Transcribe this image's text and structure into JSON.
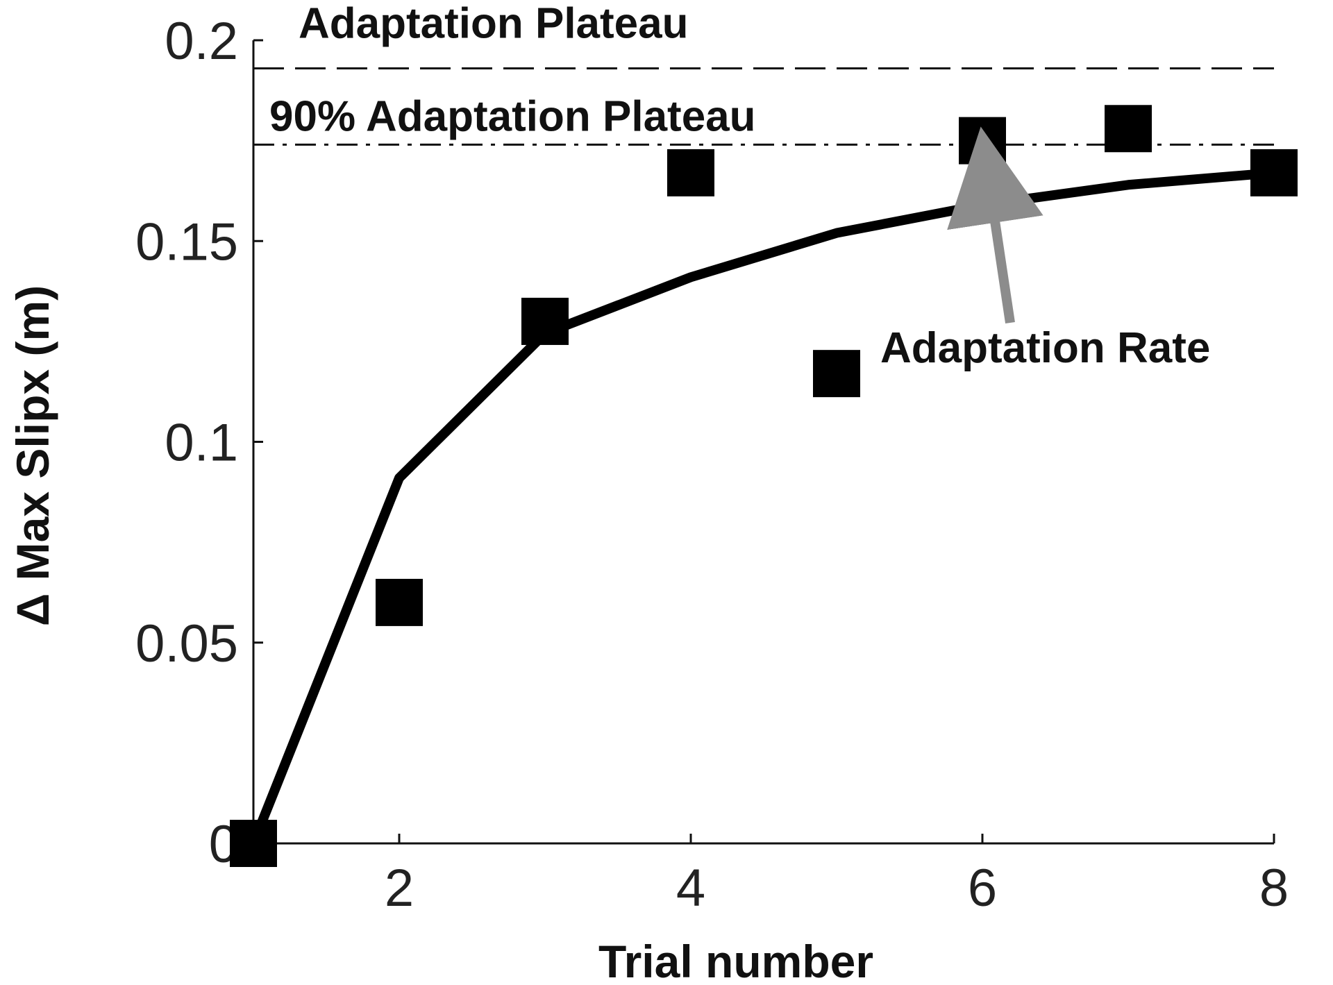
{
  "chart_data": {
    "type": "scatter",
    "title": "",
    "xlabel": "Trial number",
    "ylabel": "Δ Max Slipx (m)",
    "xlim": [
      1,
      8
    ],
    "ylim": [
      0,
      0.2
    ],
    "xticks": [
      2,
      4,
      6,
      8
    ],
    "xtick_labels": [
      "2",
      "4",
      "6",
      "8"
    ],
    "yticks": [
      0,
      0.05,
      0.1,
      0.15,
      0.2
    ],
    "ytick_labels": [
      "0",
      "0.05",
      "0.1",
      "0.15",
      "0.2"
    ],
    "grid": false,
    "series": [
      {
        "kind": "scatter",
        "marker": "square",
        "color": "#000000",
        "x": [
          1,
          2,
          3,
          4,
          5,
          6,
          7,
          8
        ],
        "y": [
          0.0,
          0.06,
          0.13,
          0.167,
          0.117,
          0.175,
          0.178,
          0.167
        ]
      },
      {
        "kind": "line",
        "color": "#000000",
        "x": [
          1,
          2,
          3,
          4,
          5,
          6,
          7,
          8
        ],
        "y": [
          0.0,
          0.091,
          0.127,
          0.141,
          0.152,
          0.159,
          0.164,
          0.167
        ]
      }
    ],
    "reference_lines": [
      {
        "label": "Adaptation Plateau",
        "y": 0.193,
        "style": "dashed"
      },
      {
        "label": "90% Adaptation Plateau",
        "y": 0.174,
        "style": "dashdot"
      }
    ],
    "annotations": [
      {
        "text": "Adaptation Rate",
        "arrow_to": {
          "x": 6,
          "y": 0.17
        },
        "arrow_color": "#8c8c8c"
      }
    ]
  }
}
